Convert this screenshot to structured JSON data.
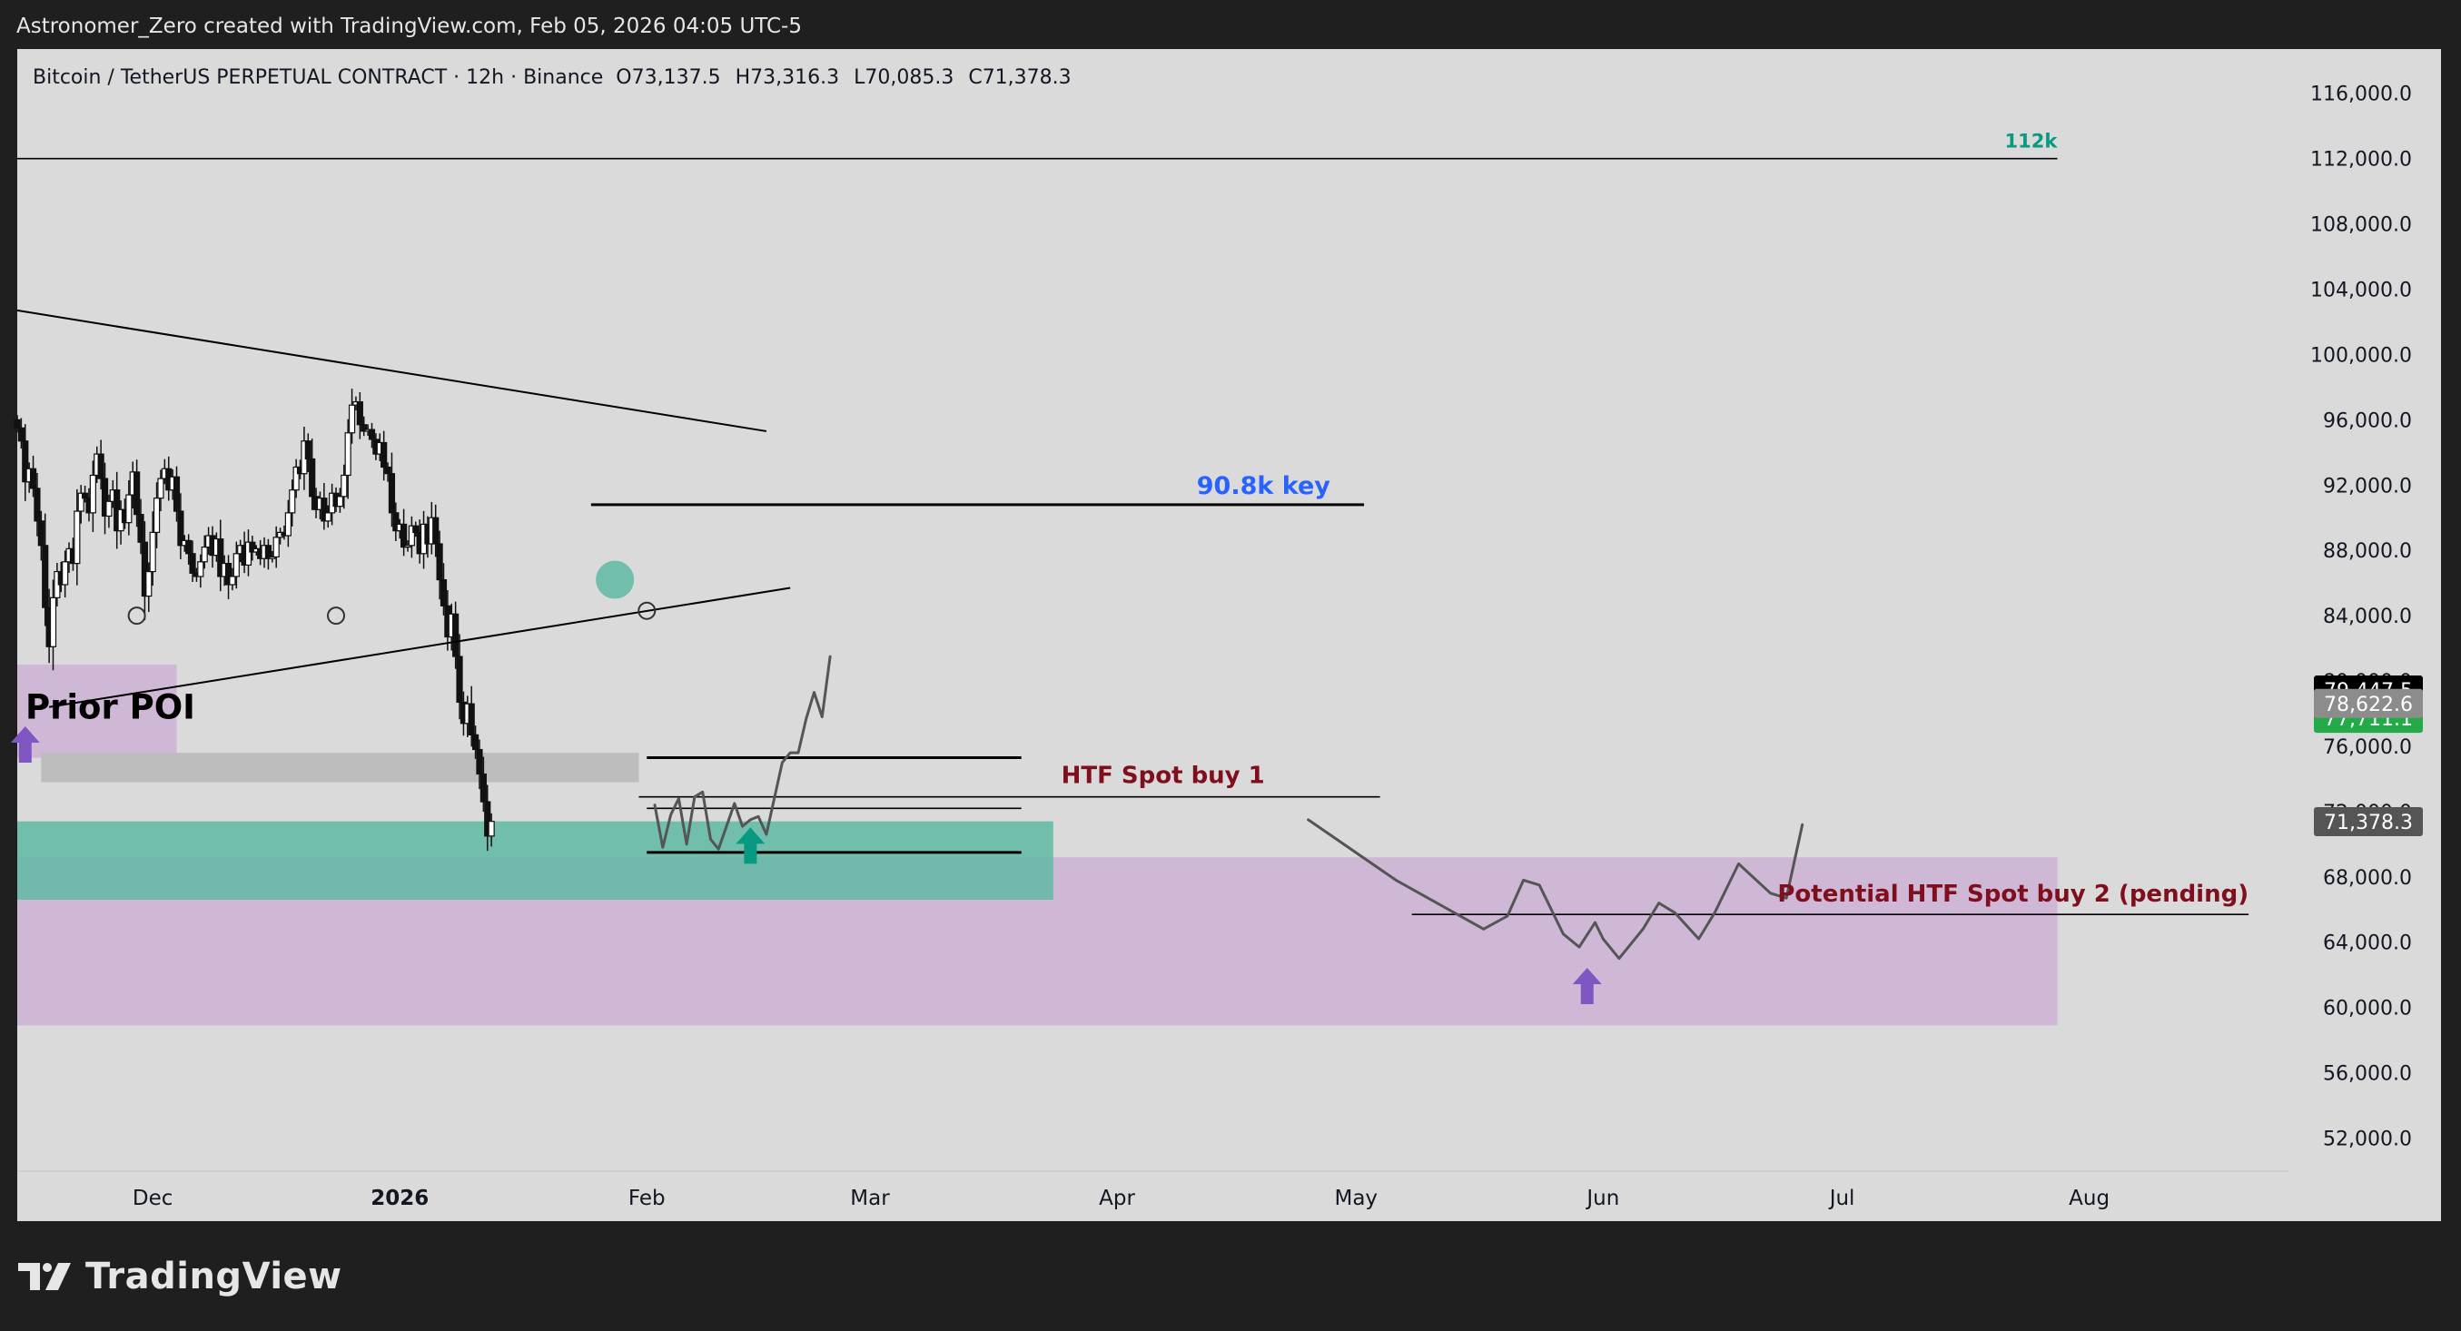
{
  "header": {
    "attribution": "Astronomer_Zero created with TradingView.com, Feb 05, 2026 04:05 UTC-5"
  },
  "footer": {
    "brand": "TradingView"
  },
  "colors": {
    "background": "#1f1f1f",
    "plot_background": "#dadada",
    "candle": "#111111",
    "teal_zone": "#5fb9a3",
    "purple_zone": "#cdb1d5",
    "grey_zone": "#bcbcbc",
    "key_label": "#2962ff",
    "htf_label": "#800f1e",
    "level_112k": "#089981",
    "arrow_purple": "#7e57c2",
    "arrow_teal": "#089981"
  },
  "chart_data": {
    "type": "candlestick",
    "symbol_title": "Bitcoin / TetherUS PERPETUAL CONTRACT · 12h · Binance",
    "ohlc": {
      "open": "O73,137.5",
      "high": "H73,316.3",
      "low": "L70,085.3",
      "close": "C71,378.3"
    },
    "timeframe": "12h",
    "x_ticks": [
      "Dec",
      "2026",
      "Feb",
      "Mar",
      "Apr",
      "May",
      "Jun",
      "Jul",
      "Aug"
    ],
    "x_range": [
      "2025-11-14",
      "2026-08-26"
    ],
    "y_ticks": [
      116000,
      112000,
      108000,
      104000,
      100000,
      96000,
      92000,
      88000,
      84000,
      80000,
      76000,
      72000,
      68000,
      64000,
      60000,
      56000,
      52000
    ],
    "y_tick_labels": [
      "116,000.0",
      "112,000.0",
      "108,000.0",
      "104,000.0",
      "100,000.0",
      "96,000.0",
      "92,000.0",
      "88,000.0",
      "84,000.0",
      "80,000.0",
      "76,000.0",
      "72,000.0",
      "68,000.0",
      "64,000.0",
      "60,000.0",
      "56,000.0",
      "52,000.0"
    ],
    "ylim": [
      48300,
      118600
    ],
    "price_badges": [
      {
        "value": 79447.5,
        "label": "79,447.5",
        "bg": "#000000",
        "fg": "#ffffff"
      },
      {
        "value": 77711.1,
        "label": "77,711.1",
        "bg": "#22ab46",
        "fg": "#ffffff"
      },
      {
        "value": 78622.6,
        "label": "78,622.6",
        "bg": "#8c8c8c",
        "fg": "#ffffff"
      },
      {
        "value": 71378.3,
        "label": "71,378.3",
        "bg": "#555555",
        "fg": "#ffffff"
      }
    ],
    "candles": {
      "start": "2025-11-14",
      "interval_hours": 12,
      "closes": [
        95500,
        94700,
        92200,
        93000,
        91800,
        89800,
        88300,
        84500,
        82100,
        85100,
        86700,
        85900,
        87300,
        88100,
        87200,
        90400,
        91500,
        91200,
        90300,
        92600,
        93900,
        92400,
        90100,
        91000,
        91700,
        89200,
        90500,
        89700,
        91400,
        92800,
        90200,
        88500,
        85200,
        86700,
        89100,
        91200,
        92400,
        93000,
        91700,
        92500,
        90400,
        88300,
        88600,
        87800,
        86600,
        86400,
        87300,
        88200,
        88900,
        87700,
        88700,
        86400,
        87200,
        85900,
        86400,
        87800,
        88300,
        87100,
        88500,
        87900,
        88100,
        87500,
        88300,
        87500,
        87600,
        88800,
        89100,
        88900,
        90300,
        91700,
        93100,
        92700,
        94700,
        93600,
        91300,
        90500,
        91200,
        89800,
        90300,
        91500,
        90700,
        91300,
        92600,
        95200,
        96900,
        97100,
        95700,
        95300,
        95400,
        94800,
        93900,
        94600,
        93100,
        92700,
        90300,
        89200,
        89600,
        88200,
        88300,
        89500,
        89100,
        87800,
        89600,
        88400,
        90000,
        88400,
        86200,
        84600,
        82700,
        84100,
        81500,
        78700,
        77400,
        78600,
        76700,
        75800,
        74300,
        72600,
        70500,
        71400
      ]
    },
    "annotations": {
      "labels": [
        {
          "text": "112k",
          "color": "#089981"
        },
        {
          "text": "90.8k key",
          "color": "#2962ff"
        },
        {
          "text": "HTF Spot buy 1",
          "color": "#800f1e"
        },
        {
          "text": "Potential HTF Spot buy 2 (pending)",
          "color": "#800f1e"
        },
        {
          "text": "Prior POI",
          "color": "#000000"
        }
      ],
      "horizontal_levels": [
        {
          "price": 112000,
          "from": "2025-11-14",
          "to": "2026-07-28"
        },
        {
          "price": 90800,
          "from": "2026-01-25",
          "to": "2026-05-02"
        },
        {
          "price": 75300,
          "from": "2026-02-01",
          "to": "2026-03-20"
        },
        {
          "price": 72200,
          "from": "2026-02-01",
          "to": "2026-03-20"
        },
        {
          "price": 69500,
          "from": "2026-02-01",
          "to": "2026-03-20"
        },
        {
          "price": 72900,
          "from": "2026-01-31",
          "to": "2026-05-04"
        },
        {
          "price": 65700,
          "from": "2026-05-08",
          "to": "2026-08-21"
        }
      ],
      "trendlines": [
        {
          "from": [
            "2025-11-14",
            102700
          ],
          "to": [
            "2026-02-16",
            95300
          ]
        },
        {
          "from": [
            "2025-11-18",
            78400
          ],
          "to": [
            "2026-02-19",
            85700
          ]
        }
      ],
      "zones": [
        {
          "name": "Prior POI",
          "color": "#cdb1d5",
          "from": "2025-11-14",
          "to": "2025-12-04",
          "top": 81000,
          "bottom": 75300
        },
        {
          "name": "grey",
          "color": "#bcbcbc",
          "from": "2025-11-17",
          "to": "2026-01-31",
          "top": 75600,
          "bottom": 73800
        },
        {
          "name": "purple",
          "color": "#cdb1d5",
          "from": "2025-11-14",
          "to": "2026-07-28",
          "top": 69200,
          "bottom": 58900
        },
        {
          "name": "teal",
          "color": "#5fb9a3",
          "from": "2025-11-14",
          "to": "2026-03-24",
          "top": 71400,
          "bottom": 66600
        }
      ],
      "projection_path_1": [
        [
          "2026-02-02",
          72400
        ],
        [
          "2026-02-03",
          69800
        ],
        [
          "2026-02-04",
          71800
        ],
        [
          "2026-02-05",
          72800
        ],
        [
          "2026-02-06",
          70000
        ],
        [
          "2026-02-07",
          72900
        ],
        [
          "2026-02-08",
          73200
        ],
        [
          "2026-02-09",
          70300
        ],
        [
          "2026-02-10",
          69700
        ],
        [
          "2026-02-12",
          72500
        ],
        [
          "2026-02-13",
          71100
        ],
        [
          "2026-02-14",
          71500
        ],
        [
          "2026-02-15",
          71700
        ],
        [
          "2026-02-16",
          70600
        ],
        [
          "2026-02-18",
          75000
        ],
        [
          "2026-02-19",
          75600
        ],
        [
          "2026-02-20",
          75600
        ],
        [
          "2026-02-21",
          77700
        ],
        [
          "2026-02-22",
          79300
        ],
        [
          "2026-02-23",
          77800
        ],
        [
          "2026-02-24",
          81500
        ]
      ],
      "projection_path_2": [
        [
          "2026-04-25",
          71500
        ],
        [
          "2026-05-06",
          67800
        ],
        [
          "2026-05-17",
          64800
        ],
        [
          "2026-05-20",
          65600
        ],
        [
          "2026-05-22",
          67800
        ],
        [
          "2026-05-24",
          67500
        ],
        [
          "2026-05-27",
          64500
        ],
        [
          "2026-05-29",
          63700
        ],
        [
          "2026-05-31",
          65200
        ],
        [
          "2026-06-01",
          64200
        ],
        [
          "2026-06-03",
          63000
        ],
        [
          "2026-06-06",
          64800
        ],
        [
          "2026-06-08",
          66400
        ],
        [
          "2026-06-10",
          65800
        ],
        [
          "2026-06-13",
          64200
        ],
        [
          "2026-06-15",
          65800
        ],
        [
          "2026-06-18",
          68800
        ],
        [
          "2026-06-22",
          67000
        ],
        [
          "2026-06-24",
          66700
        ],
        [
          "2026-06-26",
          71200
        ]
      ],
      "arrows": [
        {
          "date": "2025-11-15",
          "price": 76000,
          "color": "#7e57c2"
        },
        {
          "date": "2026-02-14",
          "price": 69800,
          "color": "#089981"
        },
        {
          "date": "2026-05-30",
          "price": 61200,
          "color": "#7e57c2"
        }
      ],
      "circle_markers": [
        {
          "date": "2025-11-29",
          "price": 84000
        },
        {
          "date": "2025-12-24",
          "price": 84000
        },
        {
          "date": "2026-02-01",
          "price": 84300
        }
      ],
      "filled_marker": {
        "date": "2026-01-28",
        "price": 86200,
        "color": "#5fb9a3"
      }
    }
  }
}
